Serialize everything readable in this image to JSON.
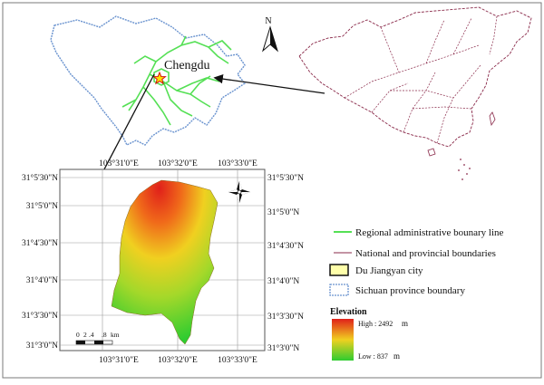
{
  "colors": {
    "frame": "#7a7a7a",
    "regional_line": "#55e055",
    "national_boundary": "#8a2a4a",
    "sichuan_boundary": "#6a93cf",
    "city_fill": "#ffffaa",
    "dem_high": "#e0201a",
    "dem_mid": "#f0d020",
    "dem_low": "#2ecc30",
    "arrow": "#111111"
  },
  "icons": {
    "north_arrow_main": "north-arrow-icon",
    "compass_rose": "compass-rose-icon",
    "chengdu_star": "star-icon"
  },
  "main_map": {
    "north_label": "N",
    "city_label": "Chengdu"
  },
  "inset": {
    "top_ticks": [
      "103°31'0\"E",
      "103°32'0\"E",
      "103°33'0\"E"
    ],
    "bottom_ticks": [
      "103°31'0\"E",
      "103°32'0\"E",
      "103°33'0\"E"
    ],
    "left_ticks": [
      "31°5'30\"N",
      "31°5'0\"N",
      "31°4'30\"N",
      "31°4'0\"N",
      "31°3'30\"N",
      "31°3'0\"N"
    ],
    "right_ticks": [
      "31°5'30\"N",
      "31°5'0\"N",
      "31°4'30\"N",
      "31°4'0\"N",
      "31°3'30\"N",
      "31°3'0\"N"
    ],
    "scale_bar": {
      "labels": [
        "0",
        "2",
        ".4",
        ".8"
      ],
      "unit": "km"
    }
  },
  "legend": {
    "items": [
      {
        "symbol": "green-line",
        "label": "Regional administrative bounary line"
      },
      {
        "symbol": "purple-line",
        "label": "National and provincial boundaries"
      },
      {
        "symbol": "yellow-box",
        "label": "Du Jiangyan city"
      },
      {
        "symbol": "blue-dashed-box",
        "label": "Sichuan province boundary"
      }
    ],
    "elevation": {
      "title": "Elevation",
      "high_label": "High : 2492",
      "high_unit": "m",
      "low_label": "Low : 837",
      "low_unit": "m"
    }
  }
}
